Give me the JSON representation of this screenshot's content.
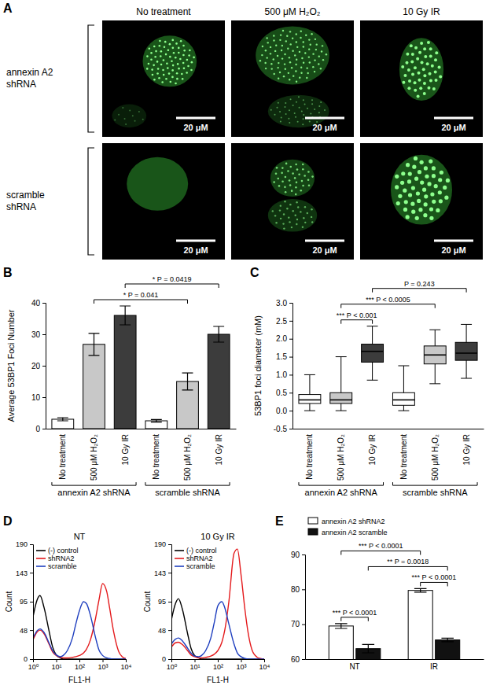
{
  "image_panel": {
    "panel": "A",
    "columns": [
      "No treatment",
      "500 μM H₂O₂",
      "10 Gy IR"
    ],
    "rows": [
      "annexin A2 shRNA",
      "scramble shRNA"
    ],
    "scale_bar": "20 μM"
  },
  "chart_data": [
    {
      "panel": "B",
      "type": "bar",
      "ylabel": "Average 53BP1 Foci Number",
      "categories": [
        "No treatment",
        "500 μM H₂O₂",
        "10 Gy IR",
        "No treatment",
        "500 μM H₂O₂",
        "10 Gy IR"
      ],
      "values": [
        3.0,
        26.8,
        36.0,
        2.5,
        15.0,
        30.0
      ],
      "errors": [
        0.5,
        3.5,
        3.0,
        0.4,
        2.7,
        2.5
      ],
      "colors": [
        "#ffffff",
        "#c8c8c8",
        "#3c3c3c",
        "#ffffff",
        "#c8c8c8",
        "#3c3c3c"
      ],
      "ylim": [
        0,
        40
      ],
      "yticks": [
        0,
        10,
        20,
        30,
        40
      ],
      "groups": [
        {
          "label": "annexin A2 shRNA",
          "indices": [
            0,
            1,
            2
          ]
        },
        {
          "label": "scramble shRNA",
          "indices": [
            3,
            4,
            5
          ]
        }
      ],
      "annotations": [
        {
          "text": "* P = 0.041",
          "between": [
            1,
            4
          ]
        },
        {
          "text": "* P = 0.0419",
          "between": [
            2,
            5
          ]
        }
      ]
    },
    {
      "panel": "C",
      "type": "box",
      "ylabel": "53BP1 foci diameter (mM)",
      "categories": [
        "No treatment",
        "500 μM H₂O₂",
        "10 Gy IR",
        "No treatment",
        "500 μM H₂O₂",
        "10 Gy IR"
      ],
      "boxes": [
        {
          "min": 0,
          "q1": 0.2,
          "median": 0.3,
          "q3": 0.45,
          "max": 1.0
        },
        {
          "min": 0,
          "q1": 0.2,
          "median": 0.3,
          "q3": 0.5,
          "max": 1.5
        },
        {
          "min": 0.85,
          "q1": 1.35,
          "median": 1.65,
          "q3": 1.85,
          "max": 2.35
        },
        {
          "min": 0,
          "q1": 0.15,
          "median": 0.3,
          "q3": 0.5,
          "max": 1.25
        },
        {
          "min": 0.75,
          "q1": 1.3,
          "median": 1.55,
          "q3": 1.8,
          "max": 2.25
        },
        {
          "min": 0.9,
          "q1": 1.4,
          "median": 1.6,
          "q3": 1.9,
          "max": 2.4
        }
      ],
      "colors": [
        "#ffffff",
        "#c8c8c8",
        "#3c3c3c",
        "#ffffff",
        "#c8c8c8",
        "#3c3c3c"
      ],
      "ylim": [
        -0.5,
        3.0
      ],
      "yticks": [
        -0.5,
        {
          "value": 0,
          "label": "0.0"
        },
        0.5,
        {
          "value": 1,
          "label": "1.0"
        },
        1.5,
        {
          "value": 2,
          "label": "2.0"
        },
        2.5,
        {
          "value": 3,
          "label": "3.0"
        }
      ],
      "groups": [
        {
          "label": "annexin A2 shRNA",
          "indices": [
            0,
            1,
            2
          ]
        },
        {
          "label": "scramble shRNA",
          "indices": [
            3,
            4,
            5
          ]
        }
      ],
      "annotations": [
        {
          "text": "*** P < 0.0005",
          "between": [
            1,
            4
          ]
        },
        {
          "text": "*** P < 0.001",
          "between": [
            1,
            2
          ]
        },
        {
          "text": "P = 0.243",
          "between": [
            2,
            5
          ]
        }
      ]
    },
    {
      "panel": "D",
      "type": "line",
      "title": "NT",
      "log": "x",
      "x": [
        1,
        1.5,
        2,
        3,
        5,
        7,
        10,
        15,
        20,
        30,
        50,
        70,
        100,
        150,
        200,
        300,
        500,
        700,
        1000,
        1500,
        2000,
        3000,
        5000,
        7000,
        10000
      ],
      "xlim": [
        1,
        10000
      ],
      "xticks": [
        {
          "value": 1,
          "label": "10⁰"
        },
        {
          "value": 10,
          "label": "10¹"
        },
        {
          "value": 100,
          "label": "10²"
        },
        {
          "value": 1000,
          "label": "10³"
        },
        {
          "value": 10000,
          "label": "10⁴"
        }
      ],
      "ylim": [
        0,
        190
      ],
      "yticks": [
        0,
        48,
        95,
        143,
        190
      ],
      "xlabel": "FL1-H",
      "ylabel": "Count",
      "legend": "top-left",
      "series": [
        {
          "name": "(-) control",
          "color": "#000000",
          "values": [
            70,
            98,
            105,
            85,
            45,
            20,
            7,
            2,
            0,
            0,
            0,
            0,
            0,
            0,
            0,
            0,
            0,
            0,
            0,
            0,
            0,
            0,
            0,
            0,
            0
          ]
        },
        {
          "name": "shRNA2",
          "color": "#e41a1c",
          "values": [
            32,
            45,
            48,
            42,
            24,
            12,
            6,
            3,
            2,
            2,
            3,
            4,
            6,
            10,
            16,
            32,
            68,
            98,
            125,
            112,
            85,
            45,
            12,
            4,
            1
          ]
        },
        {
          "name": "scramble",
          "color": "#1f3fbf",
          "values": [
            35,
            47,
            50,
            44,
            26,
            14,
            7,
            4,
            6,
            14,
            35,
            58,
            80,
            95,
            92,
            72,
            35,
            15,
            6,
            2,
            1,
            0,
            0,
            0,
            0
          ]
        }
      ]
    },
    {
      "type": "line",
      "title": "10 Gy IR",
      "log": "x",
      "x": [
        1,
        1.5,
        2,
        3,
        5,
        7,
        10,
        15,
        20,
        30,
        50,
        70,
        100,
        150,
        200,
        300,
        500,
        700,
        1000,
        1500,
        2000,
        3000,
        5000,
        7000,
        10000
      ],
      "xlim": [
        1,
        10000
      ],
      "xticks": [
        {
          "value": 1,
          "label": "10⁰"
        },
        {
          "value": 10,
          "label": "10¹"
        },
        {
          "value": 100,
          "label": "10²"
        },
        {
          "value": 1000,
          "label": "10³"
        },
        {
          "value": 10000,
          "label": "10⁴"
        }
      ],
      "ylim": [
        0,
        190
      ],
      "yticks": [
        0,
        48,
        95,
        143,
        190
      ],
      "xlabel": "FL1-H",
      "ylabel": "Count",
      "legend": "top-left",
      "series": [
        {
          "name": "(-) control",
          "color": "#000000",
          "values": [
            65,
            92,
            100,
            82,
            42,
            18,
            6,
            2,
            0,
            0,
            0,
            0,
            0,
            0,
            0,
            0,
            0,
            0,
            0,
            0,
            0,
            0,
            0,
            0,
            0
          ]
        },
        {
          "name": "shRNA2",
          "color": "#e41a1c",
          "values": [
            20,
            27,
            28,
            24,
            14,
            7,
            4,
            2,
            2,
            3,
            5,
            8,
            14,
            28,
            48,
            95,
            175,
            182,
            140,
            80,
            45,
            15,
            3,
            1,
            0
          ]
        },
        {
          "name": "scramble",
          "color": "#1f3fbf",
          "values": [
            25,
            33,
            35,
            30,
            18,
            10,
            5,
            4,
            6,
            14,
            35,
            60,
            88,
            95,
            85,
            58,
            25,
            10,
            4,
            1,
            0,
            0,
            0,
            0,
            0
          ]
        }
      ]
    },
    {
      "panel": "E",
      "type": "bar",
      "categories": [
        "NT",
        "IR"
      ],
      "series": [
        {
          "name": "annexin A2 shRNA2",
          "color": "#ffffff",
          "values": [
            69.5,
            79.7
          ],
          "errors": [
            0.7,
            0.5
          ]
        },
        {
          "name": "annexin A2 scramble",
          "color": "#111111",
          "values": [
            63.0,
            65.5
          ],
          "errors": [
            1.2,
            0.5
          ]
        }
      ],
      "ylim": [
        60,
        90
      ],
      "yticks": [
        60,
        70,
        80,
        90
      ],
      "legend": "top",
      "annotations": [
        {
          "text": "*** P < 0.0001",
          "between": [
            [
              0,
              0
            ],
            [
              1,
              0
            ]
          ]
        },
        {
          "text": "** P = 0.0018",
          "between": [
            [
              1,
              0
            ],
            [
              1,
              1
            ]
          ]
        },
        {
          "text": "*** P < 0.0001",
          "between": [
            [
              0,
              0
            ],
            [
              0,
              1
            ]
          ]
        },
        {
          "text": "*** P < 0.0001",
          "between": [
            [
              0,
              1
            ],
            [
              1,
              1
            ]
          ]
        }
      ]
    }
  ]
}
